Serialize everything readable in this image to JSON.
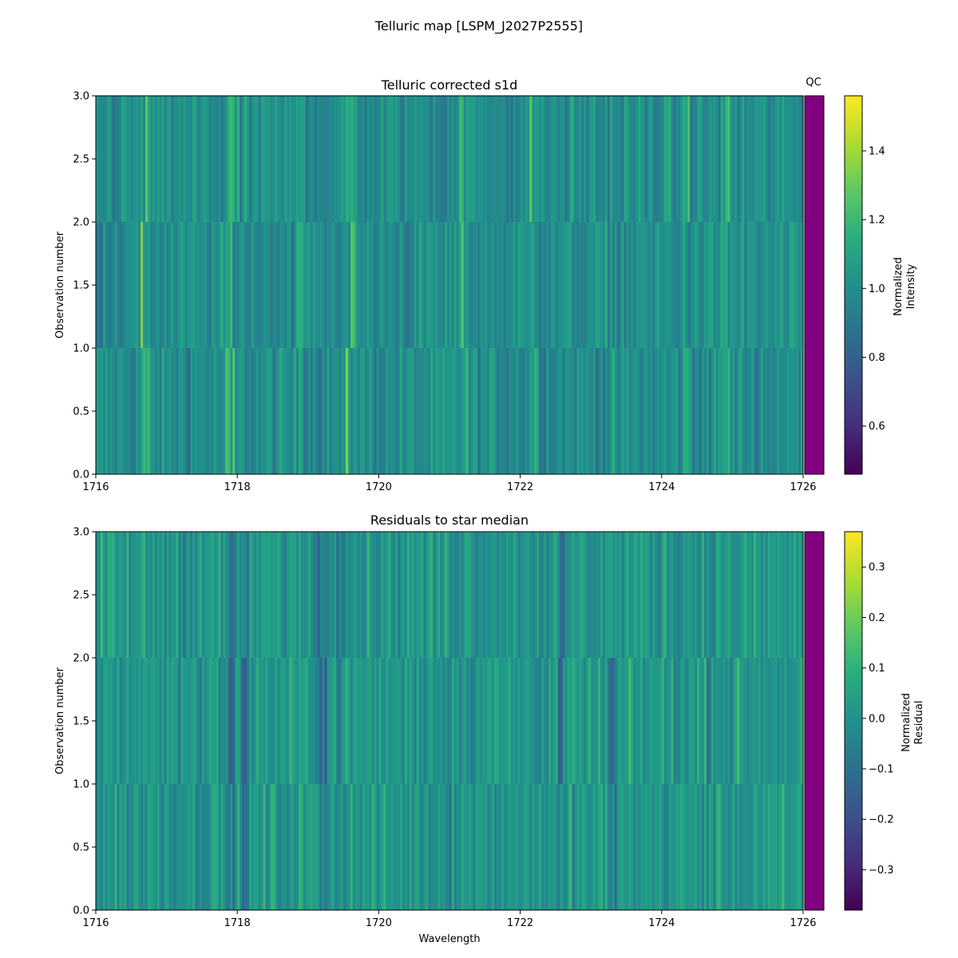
{
  "figure": {
    "suptitle": "Telluric map [LSPM_J2027P2555]"
  },
  "chart_data": [
    {
      "type": "heatmap",
      "title": "Telluric corrected s1d",
      "xlabel": "",
      "ylabel": "Observation number",
      "xlim": [
        1716,
        1726
      ],
      "ylim": [
        0.0,
        3.0
      ],
      "x_ticks": [
        "1716",
        "1718",
        "1720",
        "1722",
        "1724",
        "1726"
      ],
      "y_ticks": [
        "0.0",
        "0.5",
        "1.0",
        "1.5",
        "2.0",
        "2.5",
        "3.0"
      ],
      "rows": [
        {
          "y_range": [
            0.0,
            1.0
          ],
          "observation": 1
        },
        {
          "y_range": [
            1.0,
            2.0
          ],
          "observation": 2
        },
        {
          "y_range": [
            2.0,
            3.0
          ],
          "observation": 3
        }
      ],
      "colormap": "viridis",
      "colorbar": {
        "label_line1": "Normalized",
        "label_line2": "Intensity",
        "range": [
          0.46,
          1.56
        ],
        "ticks": [
          "0.6",
          "0.8",
          "1.0",
          "1.2",
          "1.4"
        ]
      },
      "qc": {
        "title": "QC",
        "color": "#800080"
      },
      "bright_features_wavelength": [
        1716.7,
        1717.9,
        1718.9,
        1719.6,
        1721.2,
        1722.2,
        1724.35,
        1724.9
      ]
    },
    {
      "type": "heatmap",
      "title": "Residuals to star median",
      "xlabel": "Wavelength",
      "ylabel": "Observation number",
      "xlim": [
        1716,
        1726
      ],
      "ylim": [
        0.0,
        3.0
      ],
      "x_ticks": [
        "1716",
        "1718",
        "1720",
        "1722",
        "1724",
        "1726"
      ],
      "y_ticks": [
        "0.0",
        "0.5",
        "1.0",
        "1.5",
        "2.0",
        "2.5",
        "3.0"
      ],
      "rows": [
        {
          "y_range": [
            0.0,
            1.0
          ],
          "observation": 1
        },
        {
          "y_range": [
            1.0,
            2.0
          ],
          "observation": 2
        },
        {
          "y_range": [
            2.0,
            3.0
          ],
          "observation": 3
        }
      ],
      "colormap": "viridis",
      "colorbar": {
        "label_line1": "Normalized",
        "label_line2": "Residual",
        "range": [
          -0.38,
          0.37
        ],
        "ticks": [
          "−0.3",
          "−0.2",
          "−0.1",
          "0.0",
          "0.1",
          "0.2",
          "0.3"
        ]
      },
      "qc": {
        "color": "#800080"
      },
      "dark_features_wavelength": [
        1717.9,
        1718.1,
        1719.2,
        1722.6,
        1723.3
      ]
    }
  ]
}
